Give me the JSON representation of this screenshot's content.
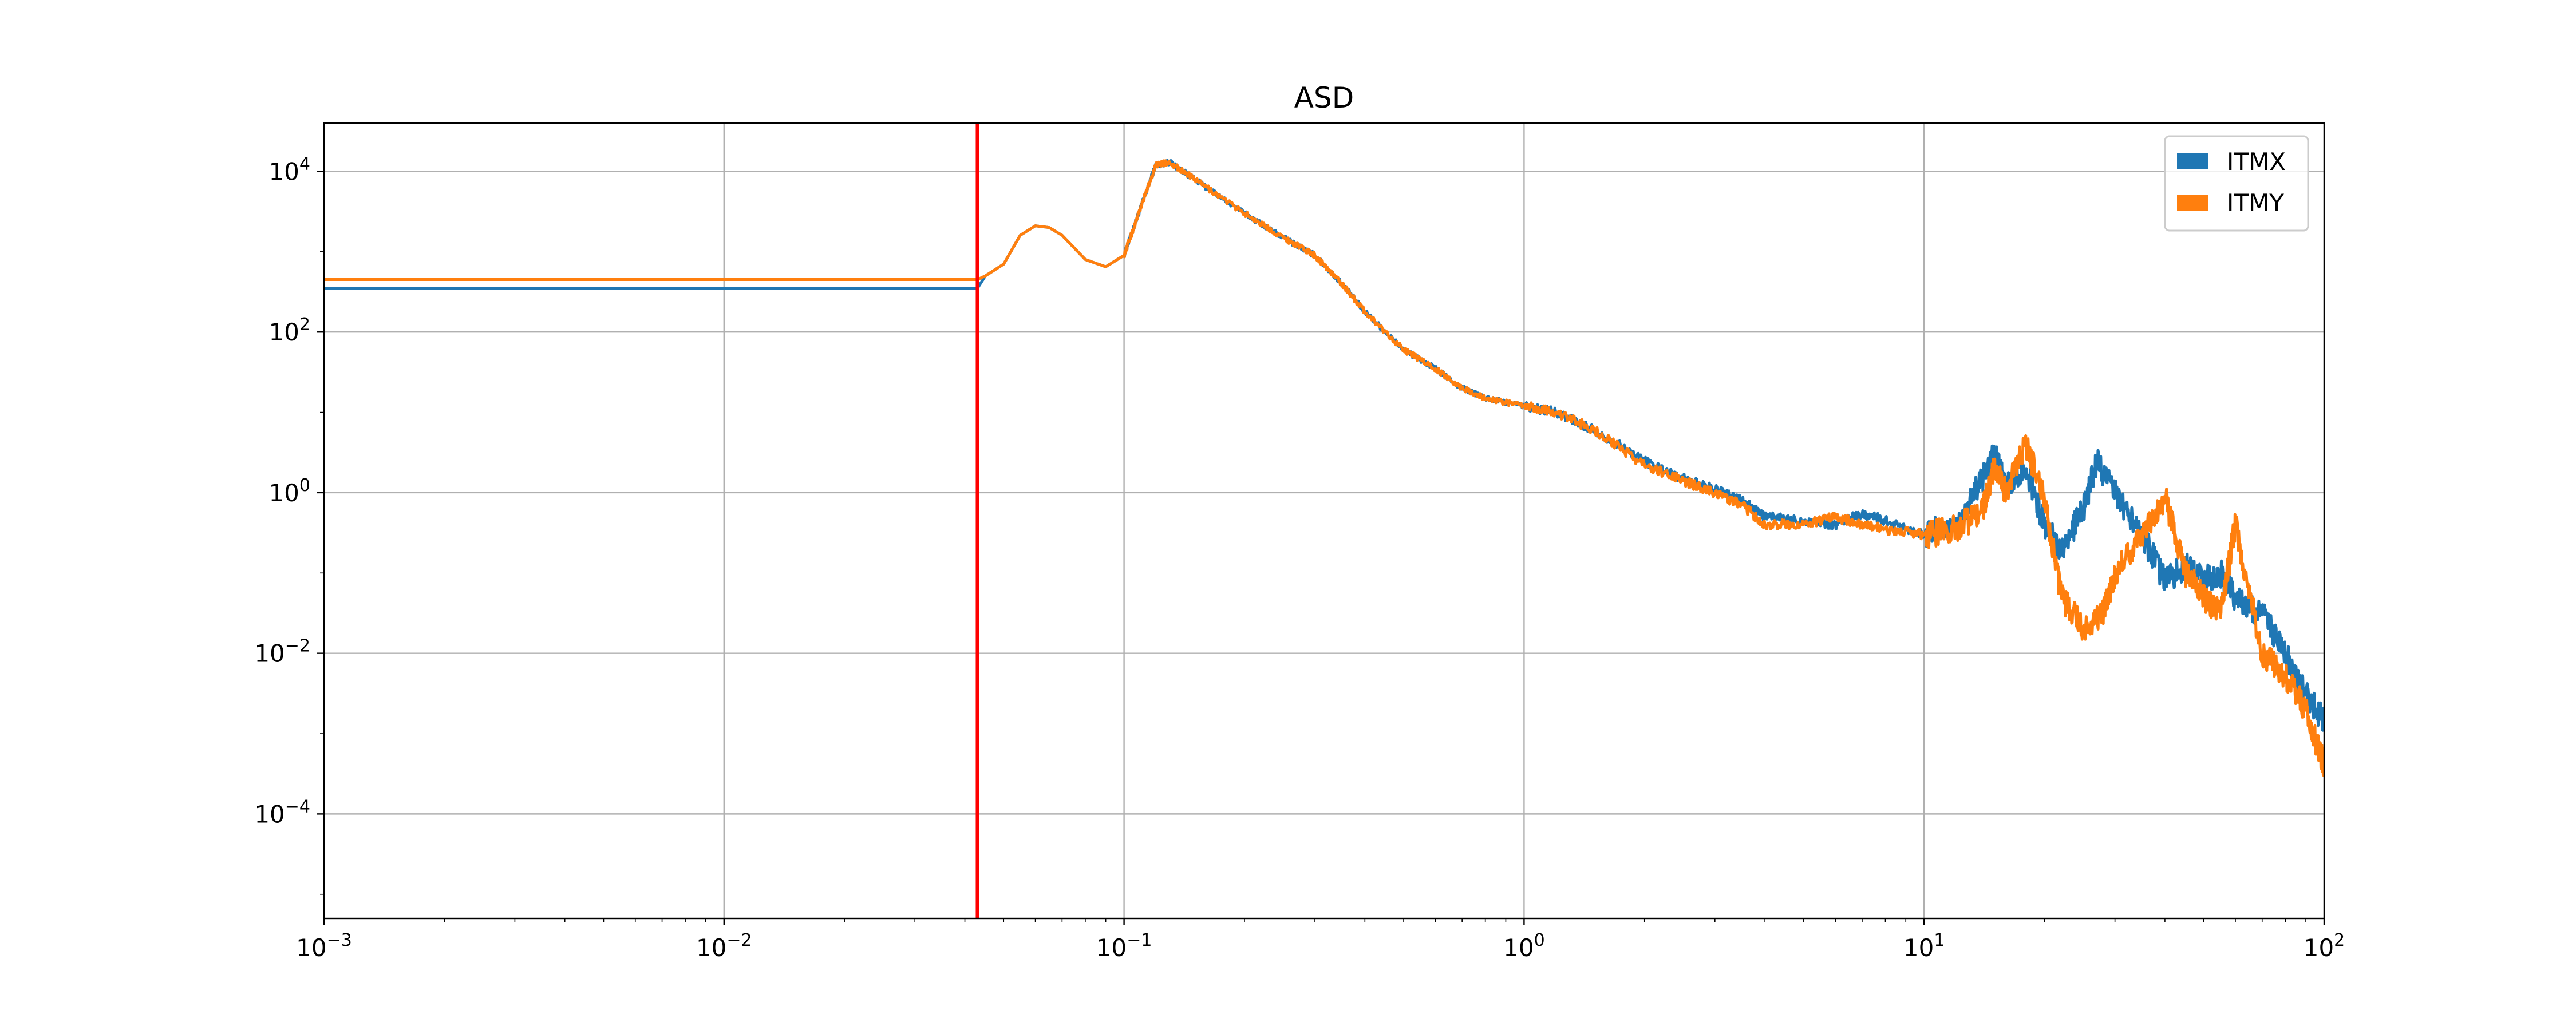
{
  "chart_data": {
    "type": "line",
    "title": "ASD",
    "x_scale": "log",
    "y_scale": "log",
    "xlim": [
      0.001,
      100
    ],
    "ylim": [
      5e-06,
      40000
    ],
    "grid": true,
    "legend_position": "top-right",
    "x_ticks": [
      {
        "base": "10",
        "exp": "−3"
      },
      {
        "base": "10",
        "exp": "−2"
      },
      {
        "base": "10",
        "exp": "−1"
      },
      {
        "base": "10",
        "exp": "0"
      },
      {
        "base": "10",
        "exp": "1"
      },
      {
        "base": "10",
        "exp": "2"
      }
    ],
    "y_ticks": [
      {
        "base": "10",
        "exp": "−4"
      },
      {
        "base": "10",
        "exp": "−2"
      },
      {
        "base": "10",
        "exp": "0"
      },
      {
        "base": "10",
        "exp": "2"
      },
      {
        "base": "10",
        "exp": "4"
      }
    ],
    "vertical_line": {
      "x": 0.043,
      "color": "#ff0000"
    },
    "series": [
      {
        "name": "ITMX",
        "color": "#1f77b4",
        "points": [
          [
            0.001,
            350
          ],
          [
            0.043,
            350
          ],
          [
            0.045,
            500
          ],
          [
            0.05,
            700
          ],
          [
            0.055,
            1600
          ],
          [
            0.06,
            2100
          ],
          [
            0.065,
            2000
          ],
          [
            0.07,
            1600
          ],
          [
            0.08,
            800
          ],
          [
            0.09,
            650
          ],
          [
            0.1,
            900
          ],
          [
            0.11,
            3500
          ],
          [
            0.12,
            12000
          ],
          [
            0.13,
            13000
          ],
          [
            0.15,
            8000
          ],
          [
            0.2,
            3000
          ],
          [
            0.25,
            1500
          ],
          [
            0.3,
            900
          ],
          [
            0.35,
            400
          ],
          [
            0.4,
            180
          ],
          [
            0.5,
            60
          ],
          [
            0.6,
            35
          ],
          [
            0.7,
            20
          ],
          [
            0.8,
            15
          ],
          [
            1.0,
            12
          ],
          [
            1.2,
            10
          ],
          [
            1.5,
            6
          ],
          [
            2.0,
            2.5
          ],
          [
            2.5,
            1.5
          ],
          [
            3.0,
            1.1
          ],
          [
            3.5,
            0.8
          ],
          [
            4.0,
            0.5
          ],
          [
            5.0,
            0.45
          ],
          [
            6.0,
            0.4
          ],
          [
            7.0,
            0.55
          ],
          [
            8.0,
            0.45
          ],
          [
            10.0,
            0.3
          ],
          [
            12.0,
            0.4
          ],
          [
            14.0,
            1.5
          ],
          [
            15.0,
            3.0
          ],
          [
            16.0,
            1.2
          ],
          [
            18.0,
            2.0
          ],
          [
            20.0,
            0.4
          ],
          [
            22.0,
            0.2
          ],
          [
            25.0,
            0.6
          ],
          [
            27.0,
            2.5
          ],
          [
            30.0,
            1.0
          ],
          [
            35.0,
            0.3
          ],
          [
            40.0,
            0.08
          ],
          [
            45.0,
            0.12
          ],
          [
            50.0,
            0.08
          ],
          [
            55.0,
            0.1
          ],
          [
            60.0,
            0.05
          ],
          [
            70.0,
            0.03
          ],
          [
            80.0,
            0.01
          ],
          [
            90.0,
            0.003
          ],
          [
            100.0,
            0.0015
          ]
        ]
      },
      {
        "name": "ITMY",
        "color": "#ff7f0e",
        "points": [
          [
            0.001,
            450
          ],
          [
            0.043,
            450
          ],
          [
            0.045,
            500
          ],
          [
            0.05,
            700
          ],
          [
            0.055,
            1600
          ],
          [
            0.06,
            2100
          ],
          [
            0.065,
            2000
          ],
          [
            0.07,
            1600
          ],
          [
            0.08,
            800
          ],
          [
            0.09,
            650
          ],
          [
            0.1,
            900
          ],
          [
            0.11,
            3500
          ],
          [
            0.12,
            12000
          ],
          [
            0.13,
            13000
          ],
          [
            0.15,
            8000
          ],
          [
            0.2,
            3000
          ],
          [
            0.25,
            1500
          ],
          [
            0.3,
            900
          ],
          [
            0.35,
            400
          ],
          [
            0.4,
            180
          ],
          [
            0.5,
            60
          ],
          [
            0.6,
            35
          ],
          [
            0.7,
            20
          ],
          [
            0.8,
            15
          ],
          [
            1.0,
            12
          ],
          [
            1.2,
            10
          ],
          [
            1.5,
            6
          ],
          [
            2.0,
            2.2
          ],
          [
            2.5,
            1.4
          ],
          [
            3.0,
            1.0
          ],
          [
            3.5,
            0.7
          ],
          [
            4.0,
            0.4
          ],
          [
            5.0,
            0.4
          ],
          [
            6.0,
            0.5
          ],
          [
            7.0,
            0.4
          ],
          [
            8.0,
            0.35
          ],
          [
            10.0,
            0.3
          ],
          [
            12.0,
            0.35
          ],
          [
            14.0,
            0.6
          ],
          [
            15.0,
            2.0
          ],
          [
            16.0,
            1.0
          ],
          [
            18.0,
            4.0
          ],
          [
            20.0,
            0.8
          ],
          [
            22.0,
            0.05
          ],
          [
            25.0,
            0.02
          ],
          [
            28.0,
            0.03
          ],
          [
            30.0,
            0.1
          ],
          [
            35.0,
            0.3
          ],
          [
            40.0,
            0.9
          ],
          [
            45.0,
            0.1
          ],
          [
            50.0,
            0.05
          ],
          [
            55.0,
            0.03
          ],
          [
            60.0,
            0.4
          ],
          [
            70.0,
            0.01
          ],
          [
            80.0,
            0.005
          ],
          [
            90.0,
            0.002
          ],
          [
            100.0,
            0.0004
          ]
        ]
      }
    ]
  }
}
